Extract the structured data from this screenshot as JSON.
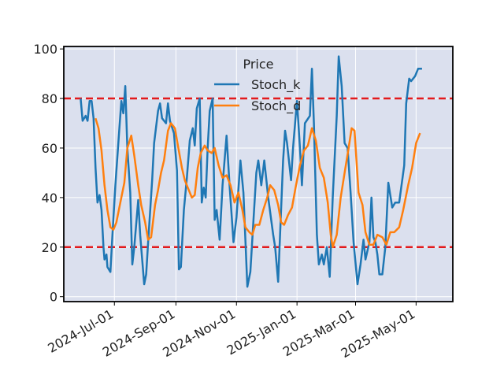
{
  "chart_data": {
    "type": "line",
    "title": "",
    "xlabel": "",
    "ylabel": "",
    "ylim": [
      -2,
      101
    ],
    "xlim": [
      "2024-05-11",
      "2025-06-07"
    ],
    "grid": true,
    "legend_title": "Price",
    "legend_position": "top-center",
    "background": "#dbe0ee",
    "yticks": [
      0,
      20,
      40,
      60,
      80,
      100
    ],
    "ytick_labels": [
      "0",
      "20",
      "40",
      "60",
      "80",
      "100"
    ],
    "xticks": [
      "2024-07-01",
      "2024-09-01",
      "2024-11-01",
      "2025-01-01",
      "2025-03-01",
      "2025-05-01"
    ],
    "xtick_labels": [
      "2024-Jul-01",
      "2024-Sep-01",
      "2024-Nov-01",
      "2025-Jan-01",
      "2025-Mar-01",
      "2025-May-01"
    ],
    "hlines": [
      {
        "y": 80,
        "color": "#e31a1c",
        "style": "dashed"
      },
      {
        "y": 20,
        "color": "#e31a1c",
        "style": "dashed"
      }
    ],
    "series": [
      {
        "name": "Stoch_k",
        "color": "#1f77b4",
        "points": [
          [
            "2024-05-28",
            80
          ],
          [
            "2024-05-30",
            71
          ],
          [
            "2024-06-02",
            73
          ],
          [
            "2024-06-04",
            71
          ],
          [
            "2024-06-06",
            79
          ],
          [
            "2024-06-08",
            79
          ],
          [
            "2024-06-10",
            72
          ],
          [
            "2024-06-12",
            52
          ],
          [
            "2024-06-14",
            38
          ],
          [
            "2024-06-16",
            41
          ],
          [
            "2024-06-18",
            35
          ],
          [
            "2024-06-20",
            20
          ],
          [
            "2024-06-21",
            15
          ],
          [
            "2024-06-23",
            17
          ],
          [
            "2024-06-24",
            12
          ],
          [
            "2024-06-27",
            10
          ],
          [
            "2024-06-29",
            25
          ],
          [
            "2024-07-02",
            45
          ],
          [
            "2024-07-06",
            68
          ],
          [
            "2024-07-08",
            79
          ],
          [
            "2024-07-10",
            74
          ],
          [
            "2024-07-12",
            85
          ],
          [
            "2024-07-14",
            60
          ],
          [
            "2024-07-17",
            42
          ],
          [
            "2024-07-19",
            13
          ],
          [
            "2024-07-21",
            20
          ],
          [
            "2024-07-25",
            39
          ],
          [
            "2024-07-27",
            25
          ],
          [
            "2024-07-31",
            5
          ],
          [
            "2024-08-02",
            9
          ],
          [
            "2024-08-04",
            22
          ],
          [
            "2024-08-08",
            47
          ],
          [
            "2024-08-10",
            62
          ],
          [
            "2024-08-14",
            75
          ],
          [
            "2024-08-16",
            78
          ],
          [
            "2024-08-18",
            72
          ],
          [
            "2024-08-22",
            70
          ],
          [
            "2024-08-24",
            78
          ],
          [
            "2024-08-26",
            71
          ],
          [
            "2024-08-30",
            66
          ],
          [
            "2024-09-02",
            51
          ],
          [
            "2024-09-04",
            11
          ],
          [
            "2024-09-06",
            12
          ],
          [
            "2024-09-09",
            35
          ],
          [
            "2024-09-12",
            48
          ],
          [
            "2024-09-15",
            63
          ],
          [
            "2024-09-18",
            68
          ],
          [
            "2024-09-20",
            61
          ],
          [
            "2024-09-22",
            76
          ],
          [
            "2024-09-25",
            80
          ],
          [
            "2024-09-27",
            38
          ],
          [
            "2024-09-29",
            44
          ],
          [
            "2024-10-01",
            40
          ],
          [
            "2024-10-03",
            60
          ],
          [
            "2024-10-05",
            75
          ],
          [
            "2024-10-08",
            80
          ],
          [
            "2024-10-10",
            31
          ],
          [
            "2024-10-12",
            35
          ],
          [
            "2024-10-15",
            23
          ],
          [
            "2024-10-18",
            45
          ],
          [
            "2024-10-22",
            65
          ],
          [
            "2024-10-25",
            45
          ],
          [
            "2024-10-29",
            22
          ],
          [
            "2024-11-01",
            32
          ],
          [
            "2024-11-05",
            55
          ],
          [
            "2024-11-08",
            42
          ],
          [
            "2024-11-12",
            4
          ],
          [
            "2024-11-15",
            10
          ],
          [
            "2024-11-18",
            30
          ],
          [
            "2024-11-21",
            50
          ],
          [
            "2024-11-23",
            55
          ],
          [
            "2024-11-26",
            45
          ],
          [
            "2024-11-29",
            55
          ],
          [
            "2024-12-03",
            40
          ],
          [
            "2024-12-08",
            25
          ],
          [
            "2024-12-10",
            20
          ],
          [
            "2024-12-13",
            6
          ],
          [
            "2024-12-18",
            55
          ],
          [
            "2024-12-20",
            67
          ],
          [
            "2024-12-22",
            62
          ],
          [
            "2024-12-26",
            47
          ],
          [
            "2024-12-28",
            60
          ],
          [
            "2025-01-01",
            79
          ],
          [
            "2025-01-04",
            60
          ],
          [
            "2025-01-06",
            45
          ],
          [
            "2025-01-09",
            70
          ],
          [
            "2025-01-14",
            73
          ],
          [
            "2025-01-16",
            92
          ],
          [
            "2025-01-18",
            70
          ],
          [
            "2025-01-21",
            25
          ],
          [
            "2025-01-23",
            13
          ],
          [
            "2025-01-26",
            17
          ],
          [
            "2025-01-28",
            13
          ],
          [
            "2025-01-31",
            20
          ],
          [
            "2025-02-03",
            8
          ],
          [
            "2025-02-06",
            40
          ],
          [
            "2025-02-10",
            73
          ],
          [
            "2025-02-12",
            97
          ],
          [
            "2025-02-15",
            85
          ],
          [
            "2025-02-18",
            62
          ],
          [
            "2025-02-21",
            60
          ],
          [
            "2025-02-24",
            42
          ],
          [
            "2025-02-27",
            22
          ],
          [
            "2025-03-03",
            5
          ],
          [
            "2025-03-06",
            13
          ],
          [
            "2025-03-09",
            23
          ],
          [
            "2025-03-11",
            15
          ],
          [
            "2025-03-15",
            22
          ],
          [
            "2025-03-17",
            40
          ],
          [
            "2025-03-19",
            24
          ],
          [
            "2025-03-21",
            22
          ],
          [
            "2025-03-23",
            17
          ],
          [
            "2025-03-25",
            9
          ],
          [
            "2025-03-28",
            9
          ],
          [
            "2025-03-31",
            20
          ],
          [
            "2025-04-03",
            46
          ],
          [
            "2025-04-07",
            36
          ],
          [
            "2025-04-10",
            38
          ],
          [
            "2025-04-14",
            38
          ],
          [
            "2025-04-19",
            53
          ],
          [
            "2025-04-21",
            78
          ],
          [
            "2025-04-24",
            88
          ],
          [
            "2025-04-26",
            87
          ],
          [
            "2025-04-30",
            89
          ],
          [
            "2025-05-03",
            92
          ],
          [
            "2025-05-07",
            92
          ]
        ]
      },
      {
        "name": "Stoch_d",
        "color": "#ff7f0e",
        "points": [
          [
            "2024-06-12",
            72
          ],
          [
            "2024-06-15",
            68
          ],
          [
            "2024-06-18",
            59
          ],
          [
            "2024-06-21",
            45
          ],
          [
            "2024-06-24",
            35
          ],
          [
            "2024-06-27",
            28
          ],
          [
            "2024-06-30",
            27
          ],
          [
            "2024-07-03",
            30
          ],
          [
            "2024-07-07",
            38
          ],
          [
            "2024-07-11",
            46
          ],
          [
            "2024-07-14",
            60
          ],
          [
            "2024-07-18",
            65
          ],
          [
            "2024-07-21",
            57
          ],
          [
            "2024-07-25",
            45
          ],
          [
            "2024-07-28",
            37
          ],
          [
            "2024-08-01",
            30
          ],
          [
            "2024-08-04",
            23
          ],
          [
            "2024-08-07",
            24
          ],
          [
            "2024-08-11",
            37
          ],
          [
            "2024-08-14",
            43
          ],
          [
            "2024-08-17",
            50
          ],
          [
            "2024-08-20",
            55
          ],
          [
            "2024-08-24",
            67
          ],
          [
            "2024-08-27",
            70
          ],
          [
            "2024-08-31",
            68
          ],
          [
            "2024-09-03",
            61
          ],
          [
            "2024-09-07",
            52
          ],
          [
            "2024-09-10",
            47
          ],
          [
            "2024-09-13",
            44
          ],
          [
            "2024-09-17",
            40
          ],
          [
            "2024-09-20",
            41
          ],
          [
            "2024-09-23",
            52
          ],
          [
            "2024-09-26",
            58
          ],
          [
            "2024-09-30",
            61
          ],
          [
            "2024-10-03",
            59
          ],
          [
            "2024-10-07",
            58
          ],
          [
            "2024-10-10",
            60
          ],
          [
            "2024-10-14",
            53
          ],
          [
            "2024-10-18",
            48
          ],
          [
            "2024-10-22",
            49
          ],
          [
            "2024-10-26",
            45
          ],
          [
            "2024-10-30",
            38
          ],
          [
            "2024-11-03",
            42
          ],
          [
            "2024-11-07",
            35
          ],
          [
            "2024-11-10",
            28
          ],
          [
            "2024-11-14",
            26
          ],
          [
            "2024-11-17",
            25
          ],
          [
            "2024-11-20",
            29
          ],
          [
            "2024-11-24",
            29
          ],
          [
            "2024-11-28",
            35
          ],
          [
            "2024-12-02",
            40
          ],
          [
            "2024-12-05",
            45
          ],
          [
            "2024-12-09",
            43
          ],
          [
            "2024-12-13",
            37
          ],
          [
            "2024-12-16",
            30
          ],
          [
            "2024-12-19",
            29
          ],
          [
            "2024-12-23",
            33
          ],
          [
            "2024-12-27",
            36
          ],
          [
            "2024-12-31",
            45
          ],
          [
            "2025-01-04",
            53
          ],
          [
            "2025-01-08",
            59
          ],
          [
            "2025-01-12",
            61
          ],
          [
            "2025-01-16",
            68
          ],
          [
            "2025-01-20",
            63
          ],
          [
            "2025-01-24",
            52
          ],
          [
            "2025-01-28",
            48
          ],
          [
            "2025-02-01",
            38
          ],
          [
            "2025-02-04",
            25
          ],
          [
            "2025-02-06",
            20
          ],
          [
            "2025-02-10",
            25
          ],
          [
            "2025-02-14",
            40
          ],
          [
            "2025-02-18",
            50
          ],
          [
            "2025-02-22",
            60
          ],
          [
            "2025-02-25",
            68
          ],
          [
            "2025-02-28",
            67
          ],
          [
            "2025-03-04",
            42
          ],
          [
            "2025-03-08",
            37
          ],
          [
            "2025-03-11",
            26
          ],
          [
            "2025-03-15",
            21
          ],
          [
            "2025-03-19",
            21
          ],
          [
            "2025-03-23",
            25
          ],
          [
            "2025-03-28",
            24
          ],
          [
            "2025-04-01",
            21
          ],
          [
            "2025-04-05",
            26
          ],
          [
            "2025-04-09",
            26
          ],
          [
            "2025-04-14",
            28
          ],
          [
            "2025-04-18",
            35
          ],
          [
            "2025-04-23",
            45
          ],
          [
            "2025-04-27",
            52
          ],
          [
            "2025-05-01",
            62
          ],
          [
            "2025-05-05",
            66
          ]
        ]
      }
    ]
  }
}
